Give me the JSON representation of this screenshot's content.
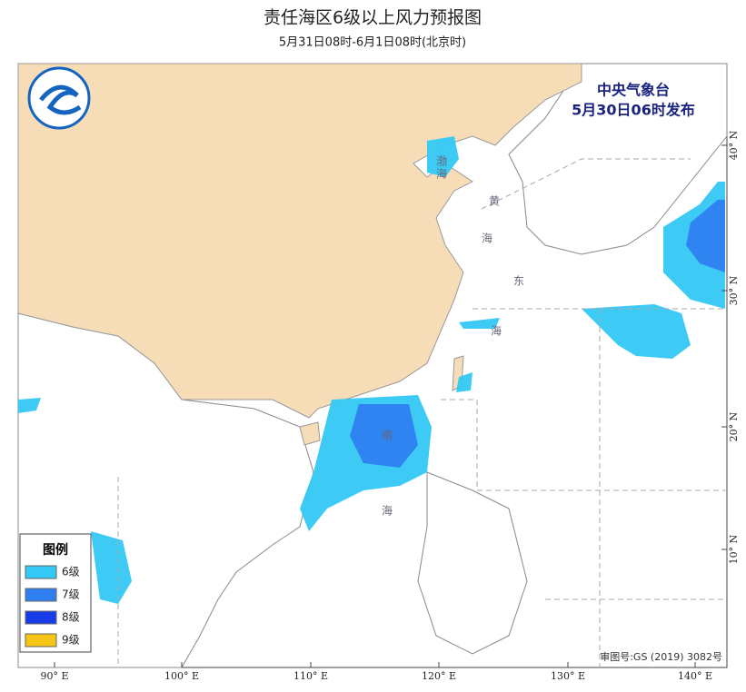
{
  "title": "责任海区6级以上风力预报图",
  "subtitle": "5月31日08时-6月1日08时(北京时)",
  "issuer": "中央气象台",
  "issue_time": "5月30日06时发布",
  "sea_labels": [
    "渤",
    "海",
    "黄",
    "海",
    "东",
    "海",
    "南",
    "海"
  ],
  "longitude_labels": [
    "90° E",
    "100° E",
    "110° E",
    "120° E",
    "130° E",
    "140° E"
  ],
  "latitude_labels": [
    "10° N",
    "20° N",
    "30° N",
    "40° N"
  ],
  "approval_number": "审图号:GS (2019) 3082号",
  "legend": {
    "title": "图例",
    "items": [
      {
        "label": "6级",
        "color": "#33c8f5"
      },
      {
        "label": "7级",
        "color": "#2f7ff0"
      },
      {
        "label": "8级",
        "color": "#1a3ce8"
      },
      {
        "label": "9级",
        "color": "#f5c518"
      }
    ]
  }
}
